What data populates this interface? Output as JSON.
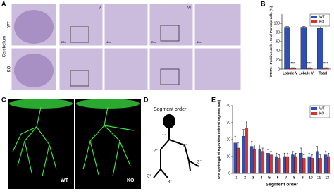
{
  "panel_labels": [
    "A",
    "B",
    "C",
    "D",
    "E"
  ],
  "panel_a": {
    "side_label": "Cerebellum",
    "rows": [
      "WT",
      "KO"
    ],
    "lobules": [
      "V",
      "VI"
    ],
    "magnifications": [
      "20x",
      "40x"
    ]
  },
  "panel_c": {
    "labels": [
      "WT",
      "KO"
    ]
  },
  "panel_d": {
    "title": "Segment order",
    "orders": [
      "1°",
      "2°",
      "2°",
      "3°",
      "3°",
      "3°"
    ]
  },
  "chart_data": [
    {
      "type": "bar",
      "y_label": "STAT3+ Purkinje cells / total Purkinje cells (%)",
      "categories": [
        "Lobule V",
        "Lobule VI",
        "Total"
      ],
      "series": [
        {
          "name": "WT",
          "color": "#2f4fb5",
          "values": [
            90,
            90,
            89
          ],
          "errors": [
            3,
            3,
            3
          ]
        },
        {
          "name": "KO",
          "color": "#d9332b",
          "values": [
            2,
            2,
            2
          ],
          "errors": [
            1,
            1,
            1
          ]
        }
      ],
      "annotations": [
        "***",
        "***",
        "***"
      ],
      "ylim": [
        0,
        120
      ],
      "yticks": [
        0,
        20,
        40,
        60,
        80,
        100
      ],
      "legend": "top-right"
    },
    {
      "type": "bar",
      "y_label": "Average length of equivalent ordered segment (um)",
      "x_label": "Segment order",
      "categories": [
        "1",
        "2",
        "3",
        "4",
        "5",
        "6",
        "7",
        "8",
        "9",
        "10",
        "11",
        "12"
      ],
      "series": [
        {
          "name": "WT",
          "color": "#2f4fb5",
          "values": [
            18,
            22,
            16,
            14,
            12,
            10,
            10,
            11,
            12,
            10,
            13,
            11
          ],
          "errors": [
            4,
            4,
            3,
            3,
            2,
            2,
            2,
            2,
            3,
            2,
            3,
            2
          ]
        },
        {
          "name": "KO",
          "color": "#d9332b",
          "values": [
            15,
            27,
            14,
            13,
            11,
            9,
            10,
            10,
            9,
            9,
            9,
            10
          ],
          "errors": [
            3,
            4,
            3,
            2,
            2,
            2,
            2,
            2,
            2,
            2,
            2,
            2
          ]
        }
      ],
      "ylim": [
        0,
        40
      ],
      "yticks": [
        0,
        10,
        20,
        30,
        40
      ],
      "legend": "top-right"
    }
  ]
}
